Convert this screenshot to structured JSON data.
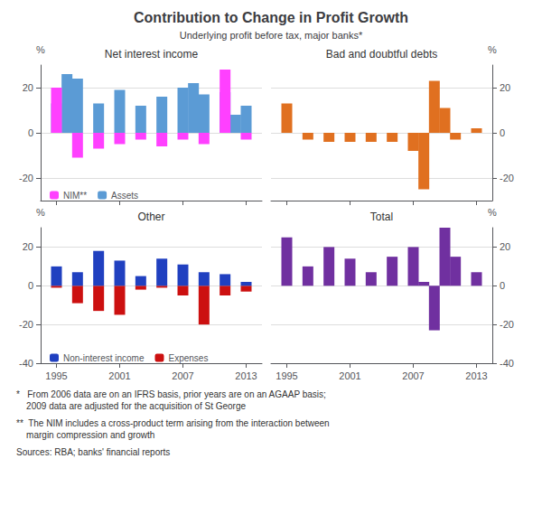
{
  "title": "Contribution to Change in Profit Growth",
  "subtitle": "Underlying profit before tax, major banks*",
  "annotations": [
    "*   From 2006 data are on an IFRS basis, prior years are on an AGAAP basis;\n    2009 data are adjusted for the acquisition of St George",
    "**  The NIM includes a cross-product term arising from the interaction between\n    margin compression and growth",
    "Sources: RBA; banks' financial reports"
  ],
  "chart_data": [
    {
      "type": "bar",
      "title": "Net interest income",
      "ylabel": "%",
      "xlim": [
        1993.5,
        2014.5
      ],
      "xticks": [
        1995,
        2001,
        2007,
        2013
      ],
      "ylim": [
        -30,
        30
      ],
      "yticks": [
        -20,
        0,
        20
      ],
      "grid": true,
      "legend": "lower left",
      "tick_labels": "y",
      "series": [
        {
          "name": "NIM**",
          "color": "#FF40FF",
          "x": [
            1995,
            1997,
            1999,
            2001,
            2003,
            2005,
            2007,
            2009,
            2011,
            2013
          ],
          "values": [
            20,
            -11,
            -7,
            -5,
            -3,
            -6,
            -3,
            -5,
            28,
            -3
          ]
        },
        {
          "name": "Assets",
          "color": "#5B9BD5",
          "x": [
            1995,
            1996,
            1997,
            1999,
            2001,
            2003,
            2005,
            2007,
            2008,
            2009,
            2011,
            2012,
            2013
          ],
          "values": [
            13,
            26,
            24,
            13,
            19,
            12,
            16,
            20,
            22,
            17,
            18,
            8,
            12
          ]
        }
      ]
    },
    {
      "type": "bar",
      "title": "Bad and doubtful debts",
      "ylabel": "%",
      "xlim": [
        1993.5,
        2014.5
      ],
      "xticks": [
        1995,
        2001,
        2007,
        2013
      ],
      "ylim": [
        -30,
        30
      ],
      "yticks": [
        -20,
        0,
        20
      ],
      "grid": true,
      "tick_labels": "y",
      "series": [
        {
          "color": "#E07020",
          "x": [
            1995,
            1997,
            1999,
            2001,
            2003,
            2005,
            2007,
            2008,
            2009,
            2010,
            2011,
            2013
          ],
          "values": [
            13,
            -3,
            -4,
            -4,
            -4,
            -4,
            -8,
            -25,
            23,
            11,
            -3,
            2
          ]
        }
      ]
    },
    {
      "type": "bar",
      "title": "Other",
      "ylabel": "%",
      "xlim": [
        1993.5,
        2014.5
      ],
      "xticks": [
        1995,
        2001,
        2007,
        2013
      ],
      "ylim": [
        -40,
        30
      ],
      "yticks": [
        -40,
        -20,
        0,
        20
      ],
      "grid": true,
      "legend": "lower left",
      "series": [
        {
          "name": "Non-interest income",
          "color": "#2040C0",
          "x": [
            1995,
            1997,
            1999,
            2001,
            2003,
            2005,
            2007,
            2009,
            2011,
            2013
          ],
          "values": [
            10,
            7,
            18,
            13,
            5,
            14,
            11,
            7,
            6,
            2
          ]
        },
        {
          "name": "Expenses",
          "color": "#CC1010",
          "x": [
            1995,
            1997,
            1999,
            2001,
            2003,
            2005,
            2007,
            2009,
            2011,
            2013
          ],
          "values": [
            -1,
            -9,
            -13,
            -15,
            -2,
            -1,
            -5,
            -20,
            -5,
            -3
          ]
        }
      ]
    },
    {
      "type": "bar",
      "title": "Total",
      "ylabel": "%",
      "xlim": [
        1993.5,
        2014.5
      ],
      "xticks": [
        1995,
        2001,
        2007,
        2013
      ],
      "ylim": [
        -40,
        30
      ],
      "yticks": [
        -40,
        -20,
        0,
        20
      ],
      "grid": true,
      "series": [
        {
          "color": "#7030A0",
          "x": [
            1995,
            1997,
            1999,
            2001,
            2003,
            2005,
            2007,
            2008,
            2009,
            2010,
            2011,
            2013
          ],
          "values": [
            25,
            10,
            20,
            14,
            7,
            15,
            20,
            2,
            -23,
            30,
            15,
            7
          ]
        }
      ]
    }
  ]
}
